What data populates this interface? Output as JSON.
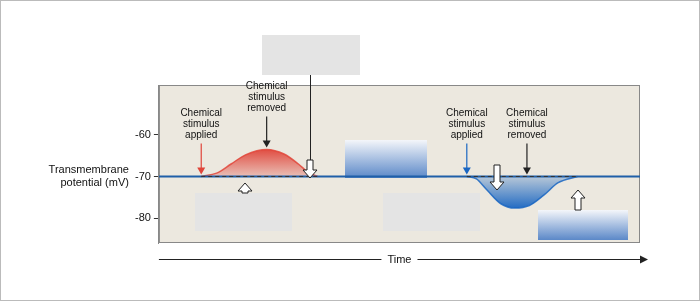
{
  "chart_data": {
    "type": "line",
    "xlabel": "Time",
    "ylabel": "Transmembrane potential (mV)",
    "xlim": [
      0,
      100
    ],
    "ylim": [
      -86,
      -48
    ],
    "yticks": [
      -80,
      -70,
      -60
    ],
    "grid": false,
    "tick_labels": "y",
    "series": [
      {
        "color": "#1f5fa8",
        "x": [
          0,
          100
        ],
        "values": [
          -70,
          -70
        ]
      },
      {
        "color": "#e0453a",
        "x": [
          8.8,
          12,
          15,
          18,
          22.4,
          26,
          29,
          31,
          33
        ],
        "values": [
          -70,
          -69.2,
          -67,
          -64.8,
          -63.5,
          -64.6,
          -67,
          -69,
          -70
        ],
        "annotations": [
          {
            "text": "Chemical stimulus applied",
            "x": 8.8
          },
          {
            "text": "Chemical stimulus removed",
            "x": 22.4
          }
        ]
      },
      {
        "color": "#1a66c2",
        "x": [
          64,
          66,
          68,
          71,
          74,
          77,
          80,
          83,
          87
        ],
        "values": [
          -70,
          -70.6,
          -73,
          -76.5,
          -77.6,
          -77,
          -74.5,
          -71.5,
          -70
        ],
        "annotations": [
          {
            "text": "Chemical stimulus applied",
            "x": 64
          },
          {
            "text": "Chemical stimulus removed",
            "x": 76.5
          }
        ]
      }
    ]
  }
}
